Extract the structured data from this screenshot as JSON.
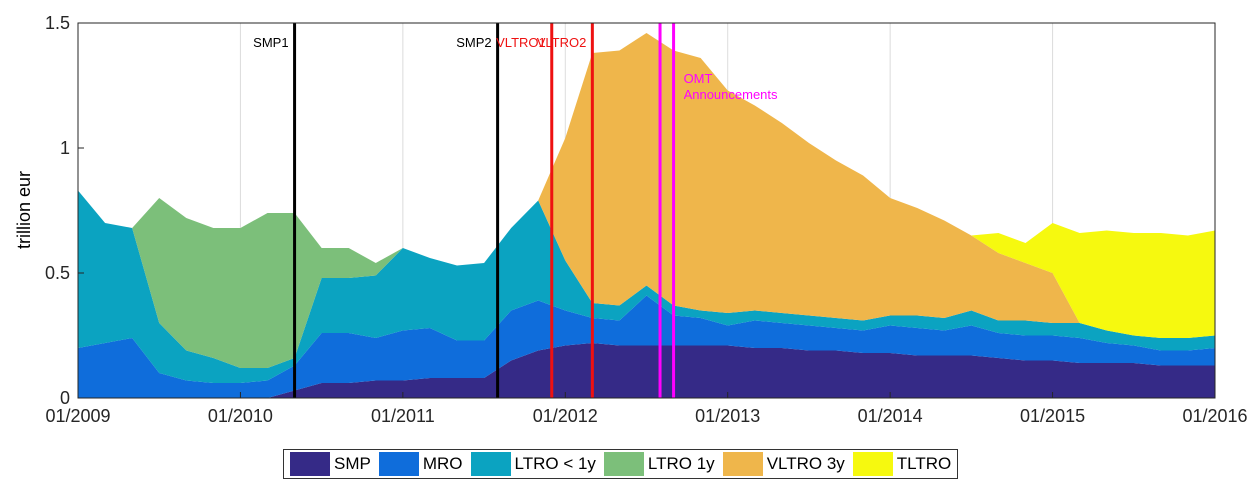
{
  "chart_data": {
    "type": "stacked-area",
    "ylabel": "trillion eur",
    "x": [
      "01/2009",
      "03/2009",
      "05/2009",
      "07/2009",
      "09/2009",
      "11/2009",
      "01/2010",
      "03/2010",
      "05/2010",
      "07/2010",
      "09/2010",
      "11/2010",
      "01/2011",
      "03/2011",
      "05/2011",
      "07/2011",
      "09/2011",
      "11/2011",
      "01/2012",
      "03/2012",
      "05/2012",
      "07/2012",
      "09/2012",
      "11/2012",
      "01/2013",
      "03/2013",
      "05/2013",
      "07/2013",
      "09/2013",
      "11/2013",
      "01/2014",
      "03/2014",
      "05/2014",
      "07/2014",
      "09/2014",
      "11/2014",
      "01/2015",
      "03/2015",
      "05/2015",
      "07/2015",
      "09/2015",
      "11/2015",
      "01/2016"
    ],
    "series": [
      {
        "name": "SMP",
        "color": "#352a87",
        "values": [
          0,
          0,
          0,
          0,
          0,
          0,
          0,
          0,
          0.03,
          0.06,
          0.06,
          0.07,
          0.07,
          0.08,
          0.08,
          0.08,
          0.15,
          0.19,
          0.21,
          0.22,
          0.21,
          0.21,
          0.21,
          0.21,
          0.21,
          0.2,
          0.2,
          0.19,
          0.19,
          0.18,
          0.18,
          0.17,
          0.17,
          0.17,
          0.16,
          0.15,
          0.15,
          0.14,
          0.14,
          0.14,
          0.13,
          0.13,
          0.13
        ]
      },
      {
        "name": "MRO",
        "color": "#0f6ddb",
        "values": [
          0.2,
          0.22,
          0.24,
          0.1,
          0.07,
          0.06,
          0.06,
          0.07,
          0.1,
          0.2,
          0.2,
          0.17,
          0.2,
          0.2,
          0.15,
          0.15,
          0.2,
          0.2,
          0.14,
          0.1,
          0.1,
          0.2,
          0.12,
          0.11,
          0.08,
          0.11,
          0.1,
          0.1,
          0.09,
          0.09,
          0.11,
          0.11,
          0.1,
          0.12,
          0.1,
          0.1,
          0.1,
          0.1,
          0.08,
          0.07,
          0.06,
          0.06,
          0.07
        ]
      },
      {
        "name": "LTRO < 1y",
        "color": "#0ba3c1",
        "values": [
          0.63,
          0.48,
          0.44,
          0.2,
          0.12,
          0.1,
          0.06,
          0.05,
          0.03,
          0.22,
          0.22,
          0.25,
          0.33,
          0.28,
          0.3,
          0.31,
          0.33,
          0.4,
          0.2,
          0.06,
          0.06,
          0.04,
          0.04,
          0.03,
          0.05,
          0.04,
          0.04,
          0.04,
          0.04,
          0.04,
          0.04,
          0.05,
          0.05,
          0.06,
          0.05,
          0.06,
          0.05,
          0.06,
          0.05,
          0.04,
          0.05,
          0.05,
          0.05
        ]
      },
      {
        "name": "LTRO 1y",
        "color": "#7cbf7a",
        "values": [
          0,
          0,
          0,
          0.5,
          0.53,
          0.52,
          0.56,
          0.62,
          0.58,
          0.12,
          0.12,
          0.05,
          0,
          0,
          0,
          0,
          0,
          0,
          0,
          0,
          0,
          0,
          0,
          0,
          0,
          0,
          0,
          0,
          0,
          0,
          0,
          0,
          0,
          0,
          0,
          0,
          0,
          0,
          0,
          0,
          0,
          0,
          0
        ]
      },
      {
        "name": "VLTRO 3y",
        "color": "#efb64b",
        "values": [
          0,
          0,
          0,
          0,
          0,
          0,
          0,
          0,
          0,
          0,
          0,
          0,
          0,
          0,
          0,
          0,
          0,
          0,
          0.49,
          1.0,
          1.02,
          1.01,
          1.02,
          1.01,
          0.89,
          0.82,
          0.76,
          0.69,
          0.63,
          0.58,
          0.47,
          0.43,
          0.39,
          0.3,
          0.27,
          0.23,
          0.2,
          0,
          0,
          0,
          0,
          0,
          0
        ]
      },
      {
        "name": "TLTRO",
        "color": "#f6f90f",
        "values": [
          0,
          0,
          0,
          0,
          0,
          0,
          0,
          0,
          0,
          0,
          0,
          0,
          0,
          0,
          0,
          0,
          0,
          0,
          0,
          0,
          0,
          0,
          0,
          0,
          0,
          0,
          0,
          0,
          0,
          0,
          0,
          0,
          0,
          0,
          0.08,
          0.08,
          0.2,
          0.36,
          0.4,
          0.41,
          0.42,
          0.41,
          0.42
        ]
      }
    ],
    "xlim": [
      "01/2009",
      "01/2016"
    ],
    "xticks": [
      "01/2009",
      "01/2010",
      "01/2011",
      "01/2012",
      "01/2013",
      "01/2014",
      "01/2015",
      "01/2016"
    ],
    "ylim": [
      0,
      1.5
    ],
    "yticks": [
      0,
      0.5,
      1,
      1.5
    ],
    "grid": true,
    "events": [
      {
        "x": "05/2010",
        "label": "SMP1",
        "color": "#000000"
      },
      {
        "x": "08/2011",
        "label": "SMP2",
        "color": "#000000"
      },
      {
        "x": "12/2011",
        "label": "VLTRO1",
        "color": "#ee1111"
      },
      {
        "x": "03/2012",
        "label": "VLTRO2",
        "color": "#ee1111"
      },
      {
        "x": "08/2012",
        "label": null,
        "color": "#ff00ff"
      },
      {
        "x": "09/2012",
        "label": "OMT Announcements",
        "color": "#ff00ff"
      }
    ]
  }
}
